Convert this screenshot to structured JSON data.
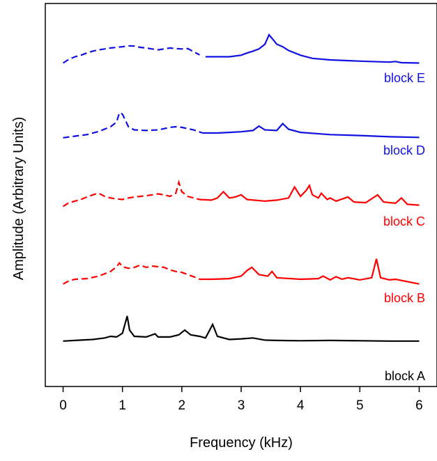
{
  "chart_data": {
    "type": "line",
    "title": "",
    "xlabel": "Frequency (kHz)",
    "ylabel": "Amplitude (Arbitrary Units)",
    "xlim": [
      -0.3,
      6.3
    ],
    "xticks": [
      "0",
      "1",
      "2",
      "3",
      "4",
      "5",
      "6"
    ],
    "xtick_values": [
      0,
      1,
      2,
      3,
      4,
      5,
      6
    ],
    "y_units": "arbitrary",
    "grid": false,
    "series": [
      {
        "name": "block E",
        "color": "#1010e0",
        "dashed_until": 2.35,
        "points": [
          [
            0,
            0.1
          ],
          [
            0.1,
            0.22
          ],
          [
            0.2,
            0.3
          ],
          [
            0.3,
            0.35
          ],
          [
            0.4,
            0.42
          ],
          [
            0.5,
            0.48
          ],
          [
            0.6,
            0.52
          ],
          [
            0.7,
            0.55
          ],
          [
            0.8,
            0.58
          ],
          [
            0.9,
            0.6
          ],
          [
            1.0,
            0.62
          ],
          [
            1.1,
            0.65
          ],
          [
            1.2,
            0.64
          ],
          [
            1.3,
            0.6
          ],
          [
            1.4,
            0.58
          ],
          [
            1.5,
            0.55
          ],
          [
            1.6,
            0.52
          ],
          [
            1.7,
            0.55
          ],
          [
            1.8,
            0.58
          ],
          [
            1.9,
            0.56
          ],
          [
            2.0,
            0.55
          ],
          [
            2.1,
            0.56
          ],
          [
            2.2,
            0.46
          ],
          [
            2.3,
            0.36
          ],
          [
            2.4,
            0.3
          ],
          [
            2.6,
            0.3
          ],
          [
            2.8,
            0.3
          ],
          [
            3.0,
            0.35
          ],
          [
            3.1,
            0.42
          ],
          [
            3.2,
            0.48
          ],
          [
            3.3,
            0.55
          ],
          [
            3.4,
            0.7
          ],
          [
            3.47,
            1.0
          ],
          [
            3.55,
            0.82
          ],
          [
            3.6,
            0.7
          ],
          [
            3.7,
            0.62
          ],
          [
            3.8,
            0.5
          ],
          [
            4.0,
            0.35
          ],
          [
            4.2,
            0.25
          ],
          [
            4.5,
            0.2
          ],
          [
            5.0,
            0.16
          ],
          [
            5.5,
            0.13
          ],
          [
            5.6,
            0.15
          ],
          [
            5.7,
            0.11
          ],
          [
            6.0,
            0.1
          ]
        ]
      },
      {
        "name": "block D",
        "color": "#1010e0",
        "dashed_until": 2.35,
        "points": [
          [
            0,
            0.05
          ],
          [
            0.2,
            0.1
          ],
          [
            0.4,
            0.15
          ],
          [
            0.6,
            0.25
          ],
          [
            0.8,
            0.4
          ],
          [
            0.9,
            0.55
          ],
          [
            0.95,
            0.85
          ],
          [
            1.0,
            0.8
          ],
          [
            1.05,
            0.6
          ],
          [
            1.1,
            0.4
          ],
          [
            1.2,
            0.3
          ],
          [
            1.4,
            0.28
          ],
          [
            1.6,
            0.3
          ],
          [
            1.8,
            0.38
          ],
          [
            1.9,
            0.4
          ],
          [
            2.0,
            0.38
          ],
          [
            2.2,
            0.3
          ],
          [
            2.35,
            0.2
          ],
          [
            2.6,
            0.2
          ],
          [
            2.8,
            0.22
          ],
          [
            3.0,
            0.24
          ],
          [
            3.2,
            0.28
          ],
          [
            3.3,
            0.42
          ],
          [
            3.4,
            0.3
          ],
          [
            3.6,
            0.28
          ],
          [
            3.7,
            0.5
          ],
          [
            3.8,
            0.32
          ],
          [
            4.0,
            0.22
          ],
          [
            4.5,
            0.15
          ],
          [
            5.0,
            0.12
          ],
          [
            5.5,
            0.08
          ],
          [
            6.0,
            0.06
          ]
        ]
      },
      {
        "name": "block C",
        "color": "#ff0000",
        "dashed_until": 2.3,
        "points": [
          [
            0,
            0.08
          ],
          [
            0.1,
            0.2
          ],
          [
            0.2,
            0.25
          ],
          [
            0.3,
            0.3
          ],
          [
            0.4,
            0.38
          ],
          [
            0.5,
            0.45
          ],
          [
            0.6,
            0.5
          ],
          [
            0.7,
            0.4
          ],
          [
            0.8,
            0.35
          ],
          [
            0.9,
            0.32
          ],
          [
            1.0,
            0.3
          ],
          [
            1.1,
            0.35
          ],
          [
            1.2,
            0.38
          ],
          [
            1.3,
            0.4
          ],
          [
            1.4,
            0.42
          ],
          [
            1.5,
            0.45
          ],
          [
            1.6,
            0.48
          ],
          [
            1.7,
            0.45
          ],
          [
            1.8,
            0.4
          ],
          [
            1.9,
            0.5
          ],
          [
            1.95,
            0.85
          ],
          [
            2.0,
            0.55
          ],
          [
            2.1,
            0.4
          ],
          [
            2.2,
            0.35
          ],
          [
            2.3,
            0.3
          ],
          [
            2.5,
            0.28
          ],
          [
            2.6,
            0.35
          ],
          [
            2.7,
            0.55
          ],
          [
            2.8,
            0.35
          ],
          [
            2.9,
            0.38
          ],
          [
            3.0,
            0.45
          ],
          [
            3.1,
            0.3
          ],
          [
            3.4,
            0.25
          ],
          [
            3.6,
            0.28
          ],
          [
            3.8,
            0.35
          ],
          [
            3.9,
            0.7
          ],
          [
            4.0,
            0.4
          ],
          [
            4.1,
            0.6
          ],
          [
            4.15,
            0.75
          ],
          [
            4.2,
            0.45
          ],
          [
            4.3,
            0.35
          ],
          [
            4.35,
            0.5
          ],
          [
            4.45,
            0.3
          ],
          [
            4.5,
            0.35
          ],
          [
            4.6,
            0.25
          ],
          [
            4.8,
            0.38
          ],
          [
            4.9,
            0.22
          ],
          [
            5.1,
            0.2
          ],
          [
            5.3,
            0.45
          ],
          [
            5.4,
            0.22
          ],
          [
            5.6,
            0.18
          ],
          [
            5.7,
            0.35
          ],
          [
            5.8,
            0.15
          ],
          [
            6.0,
            0.12
          ]
        ]
      },
      {
        "name": "block B",
        "color": "#ff0000",
        "dashed_until": 2.3,
        "points": [
          [
            0,
            0.05
          ],
          [
            0.1,
            0.15
          ],
          [
            0.2,
            0.2
          ],
          [
            0.4,
            0.22
          ],
          [
            0.6,
            0.3
          ],
          [
            0.8,
            0.45
          ],
          [
            0.9,
            0.6
          ],
          [
            0.95,
            0.72
          ],
          [
            1.0,
            0.6
          ],
          [
            1.1,
            0.55
          ],
          [
            1.2,
            0.58
          ],
          [
            1.3,
            0.65
          ],
          [
            1.4,
            0.58
          ],
          [
            1.5,
            0.62
          ],
          [
            1.6,
            0.6
          ],
          [
            1.7,
            0.58
          ],
          [
            1.8,
            0.5
          ],
          [
            1.9,
            0.45
          ],
          [
            2.0,
            0.42
          ],
          [
            2.1,
            0.35
          ],
          [
            2.2,
            0.28
          ],
          [
            2.3,
            0.2
          ],
          [
            2.5,
            0.2
          ],
          [
            2.8,
            0.22
          ],
          [
            3.0,
            0.3
          ],
          [
            3.1,
            0.48
          ],
          [
            3.18,
            0.58
          ],
          [
            3.3,
            0.35
          ],
          [
            3.45,
            0.3
          ],
          [
            3.52,
            0.45
          ],
          [
            3.6,
            0.25
          ],
          [
            4.0,
            0.2
          ],
          [
            4.3,
            0.22
          ],
          [
            4.38,
            0.3
          ],
          [
            4.5,
            0.18
          ],
          [
            4.6,
            0.28
          ],
          [
            4.7,
            0.2
          ],
          [
            4.8,
            0.25
          ],
          [
            5.0,
            0.18
          ],
          [
            5.2,
            0.25
          ],
          [
            5.28,
            0.85
          ],
          [
            5.35,
            0.25
          ],
          [
            5.5,
            0.18
          ],
          [
            5.6,
            0.2
          ],
          [
            6.0,
            0.05
          ]
        ]
      },
      {
        "name": "block A",
        "color": "#000000",
        "dashed_until": 0,
        "points": [
          [
            0,
            0.05
          ],
          [
            0.3,
            0.08
          ],
          [
            0.5,
            0.1
          ],
          [
            0.7,
            0.15
          ],
          [
            0.8,
            0.2
          ],
          [
            0.9,
            0.18
          ],
          [
            1.0,
            0.3
          ],
          [
            1.08,
            0.85
          ],
          [
            1.12,
            0.4
          ],
          [
            1.2,
            0.2
          ],
          [
            1.4,
            0.18
          ],
          [
            1.55,
            0.28
          ],
          [
            1.6,
            0.18
          ],
          [
            1.8,
            0.18
          ],
          [
            1.95,
            0.25
          ],
          [
            2.05,
            0.4
          ],
          [
            2.15,
            0.25
          ],
          [
            2.3,
            0.2
          ],
          [
            2.4,
            0.15
          ],
          [
            2.52,
            0.58
          ],
          [
            2.6,
            0.2
          ],
          [
            2.8,
            0.1
          ],
          [
            3.0,
            0.12
          ],
          [
            3.2,
            0.15
          ],
          [
            3.4,
            0.08
          ],
          [
            3.6,
            0.07
          ],
          [
            4.0,
            0.06
          ],
          [
            4.5,
            0.07
          ],
          [
            5.0,
            0.06
          ],
          [
            5.5,
            0.05
          ],
          [
            6.0,
            0.05
          ]
        ]
      }
    ]
  }
}
